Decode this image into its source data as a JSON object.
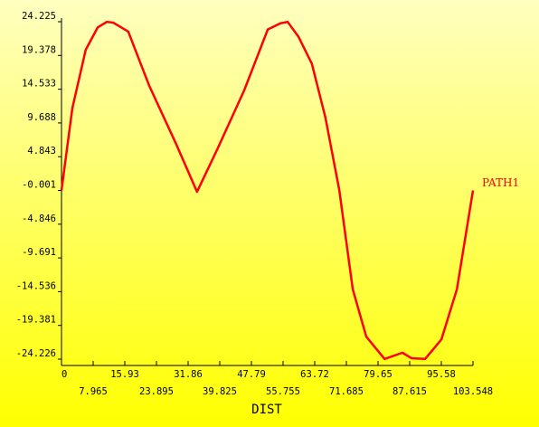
{
  "chart_data": {
    "type": "line",
    "x_label": "DIST",
    "x": [
      0,
      2.73,
      6.1,
      9.1,
      11.4,
      13,
      16.8,
      22.1,
      28.9,
      34.1,
      39.2,
      46.0,
      51.9,
      55.1,
      56.9,
      59.6,
      63.0,
      66.4,
      69.9,
      73.3,
      76.7,
      81.3,
      85.8,
      88.1,
      91.5,
      95.6,
      99.5,
      103.548
    ],
    "series": [
      {
        "name": "PATH1",
        "color": "#ff0000",
        "values": [
          0,
          11.8,
          20.2,
          23.4,
          24.2,
          24.1,
          22.8,
          15.0,
          6.6,
          -0.2,
          5.9,
          14.4,
          23.1,
          24.0,
          24.2,
          22.1,
          18.2,
          10.5,
          0.07,
          -14.2,
          -21.0,
          -24.2,
          -23.3,
          -24.1,
          -24.2,
          -21.4,
          -14.2,
          0
        ]
      }
    ],
    "xlim": [
      0,
      103.548
    ],
    "ylim": [
      -24.226,
      24.225
    ],
    "xticks": [
      0,
      7.965,
      15.93,
      23.895,
      31.86,
      39.825,
      47.79,
      55.755,
      63.72,
      71.685,
      79.65,
      87.615,
      95.58,
      103.548
    ],
    "yticks": [
      24.225,
      19.378,
      14.533,
      9.688,
      4.843,
      -0.001,
      -4.846,
      -9.691,
      -14.536,
      -19.381,
      -24.226
    ]
  }
}
